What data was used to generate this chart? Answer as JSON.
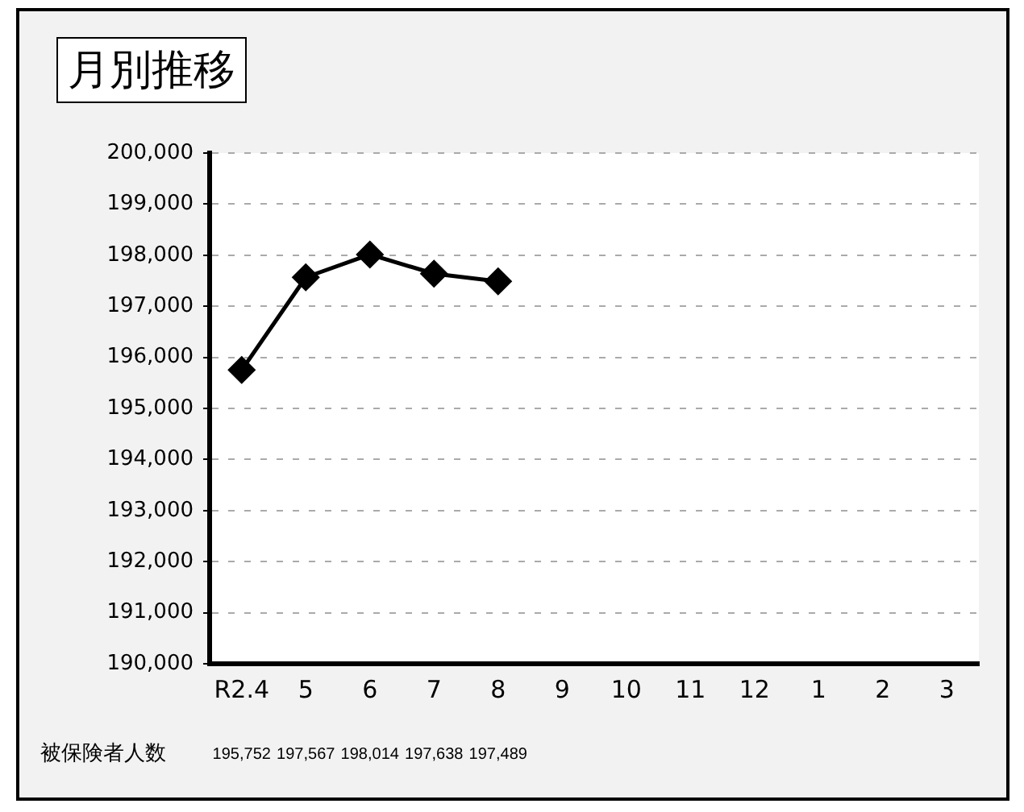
{
  "chart_data": {
    "type": "line",
    "title": "月別推移",
    "categories": [
      "R2.4",
      "5",
      "6",
      "7",
      "8",
      "9",
      "10",
      "11",
      "12",
      "1",
      "2",
      "3"
    ],
    "series": [
      {
        "name": "被保険者人数",
        "color": "#000000",
        "values": [
          195752,
          197567,
          198014,
          197638,
          197489,
          null,
          null,
          null,
          null,
          null,
          null,
          null
        ],
        "value_labels": [
          "195,752",
          "197,567",
          "198,014",
          "197,638",
          "197,489",
          null,
          null,
          null,
          null,
          null,
          null,
          null
        ]
      }
    ],
    "ylim": [
      190000,
      200000
    ],
    "yticks": [
      {
        "value": 190000,
        "label": "190,000"
      },
      {
        "value": 191000,
        "label": "191,000"
      },
      {
        "value": 192000,
        "label": "192,000"
      },
      {
        "value": 193000,
        "label": "193,000"
      },
      {
        "value": 194000,
        "label": "194,000"
      },
      {
        "value": 195000,
        "label": "195,000"
      },
      {
        "value": 196000,
        "label": "196,000"
      },
      {
        "value": 197000,
        "label": "197,000"
      },
      {
        "value": 198000,
        "label": "198,000"
      },
      {
        "value": 199000,
        "label": "199,000"
      },
      {
        "value": 200000,
        "label": "200,000"
      }
    ],
    "grid": "y",
    "legend": false,
    "marker": "diamond",
    "line_style": "solid"
  }
}
